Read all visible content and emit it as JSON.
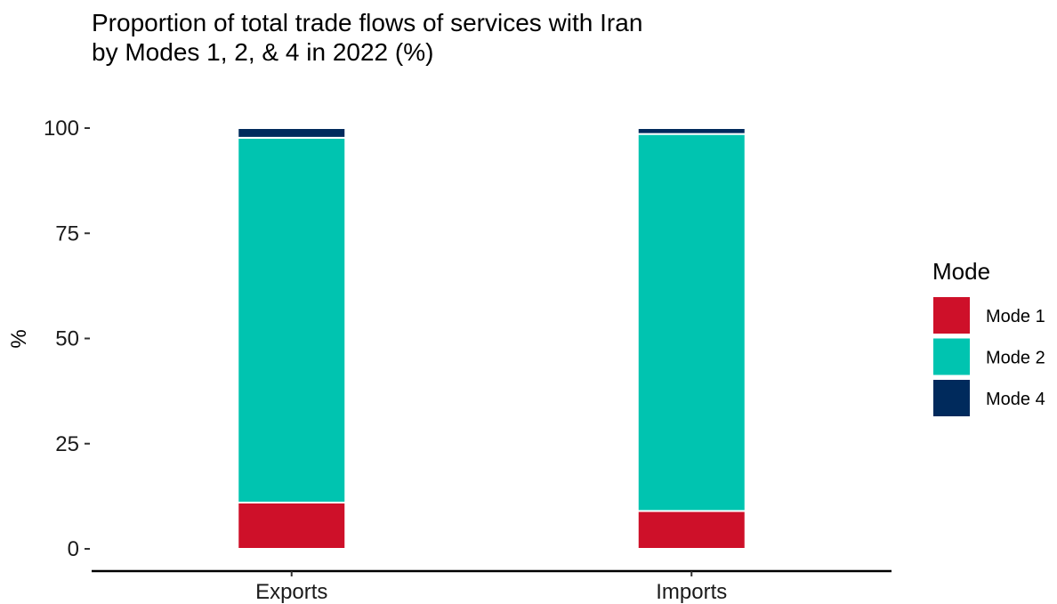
{
  "chart_data": {
    "type": "bar",
    "stacked": true,
    "title": "Proportion of total trade flows of services with Iran",
    "subtitle": "by Modes 1, 2, & 4 in 2022 (%)",
    "xlabel": "",
    "ylabel": "%",
    "ylim": [
      0,
      100
    ],
    "yticks": [
      0,
      25,
      50,
      75,
      100
    ],
    "categories": [
      "Exports",
      "Imports"
    ],
    "series": [
      {
        "name": "Mode 1",
        "color": "#ce1029",
        "values": [
          11.0,
          9.0
        ]
      },
      {
        "name": "Mode 2",
        "color": "#00c4b0",
        "values": [
          86.7,
          89.6
        ]
      },
      {
        "name": "Mode 4",
        "color": "#002a5c",
        "values": [
          2.3,
          1.4
        ]
      }
    ],
    "legend": {
      "title": "Mode",
      "position": "right"
    },
    "grid": false
  }
}
